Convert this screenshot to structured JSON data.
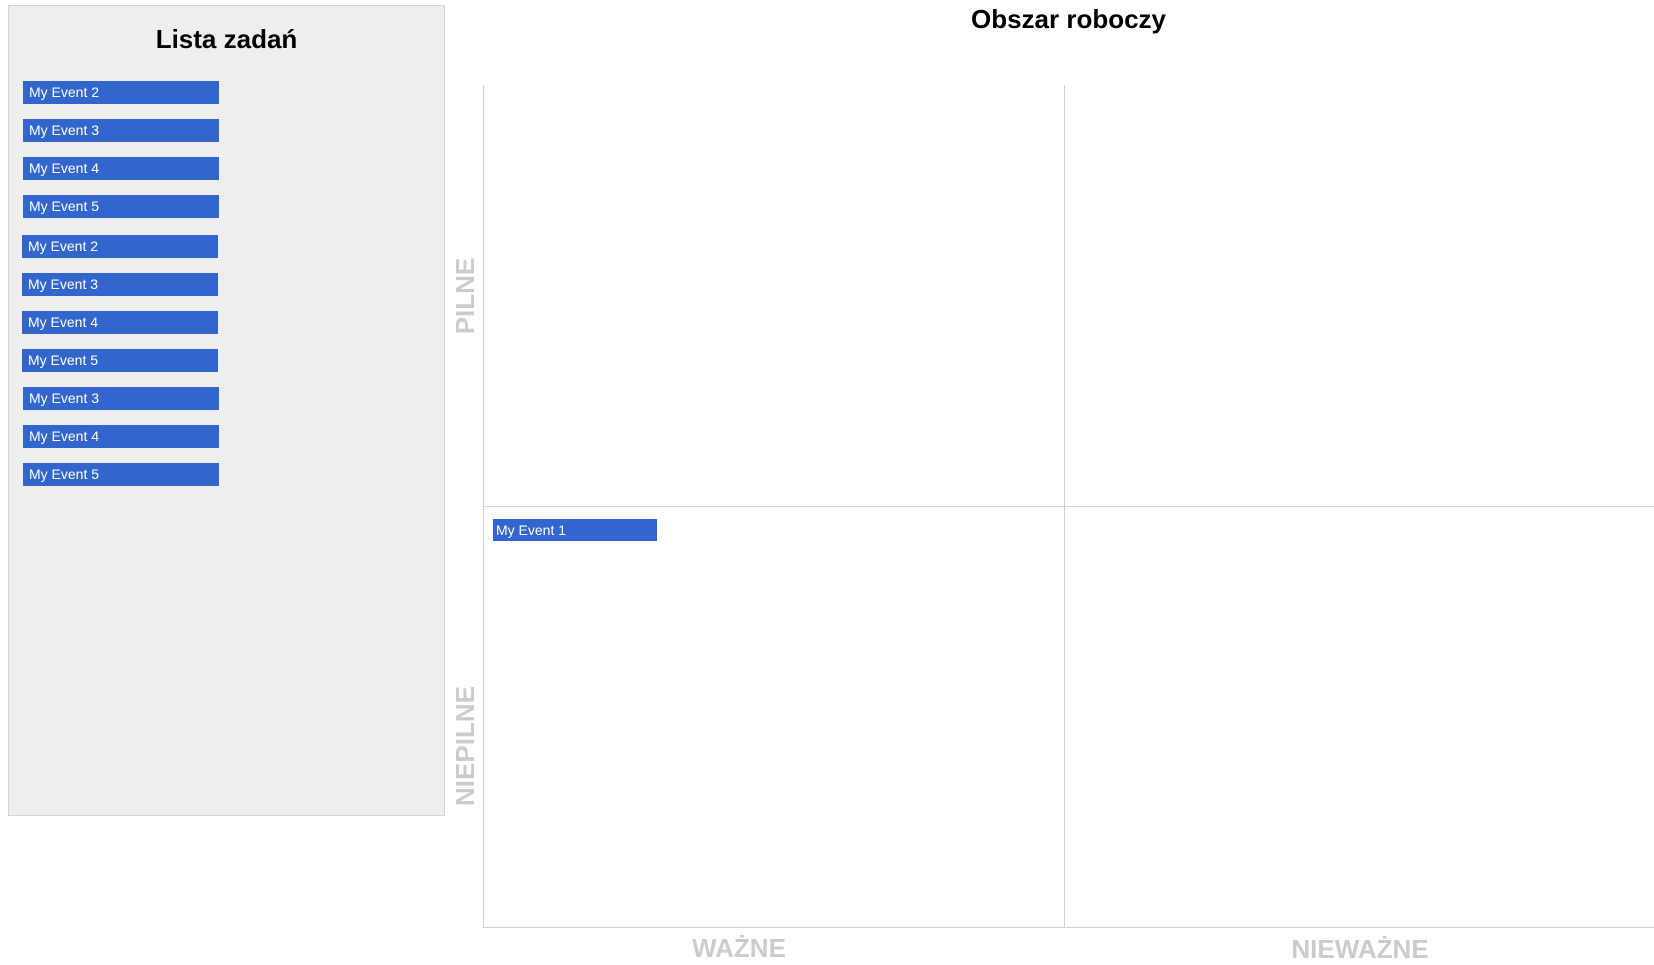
{
  "task_list": {
    "title": "Lista zadań",
    "items": [
      "My Event 2",
      "My Event 3",
      "My Event 4",
      "My Event 5",
      "My Event 2",
      "My Event 3",
      "My Event 4",
      "My Event 5",
      "My Event 3",
      "My Event 4",
      "My Event 5"
    ]
  },
  "workspace": {
    "title": "Obszar roboczy",
    "y_axis": {
      "top": "PILNE",
      "bottom": "NIEPILNE"
    },
    "x_axis": {
      "left": "WAŻNE",
      "right": "NIEWAŻNE"
    },
    "placed_tasks": [
      {
        "label": "My Event 1",
        "quadrant": "niepilne-wazne"
      }
    ]
  },
  "colors": {
    "task_bg": "#3366cc",
    "sidebar_bg": "#eeeeee",
    "axis_label": "#cccccc",
    "grid_line": "#d0d0d0"
  }
}
